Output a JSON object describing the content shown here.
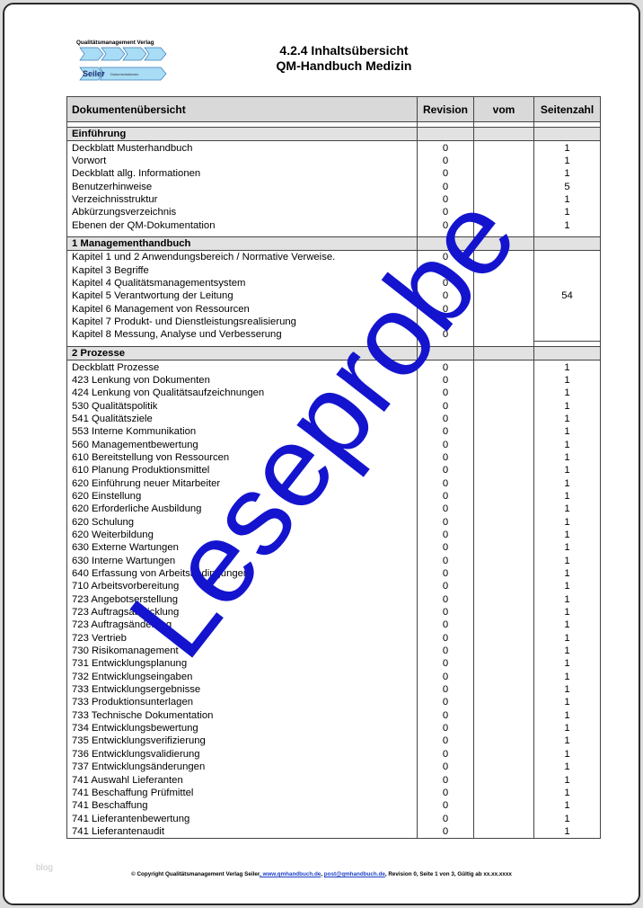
{
  "header": {
    "logo": {
      "publisher": "Qualitätsmanagement Verlag",
      "brand": "Seiler",
      "tagline": "Dokumentationen"
    },
    "title": "4.2.4 Inhaltsübersicht",
    "subtitle": "QM-Handbuch Medizin"
  },
  "table": {
    "columns": [
      "Dokumentenübersicht",
      "Revision",
      "vom",
      "Seitenzahl"
    ],
    "sections": [
      {
        "title": "Einführung",
        "rows": [
          {
            "name": "Deckblatt Musterhandbuch",
            "revision": 0,
            "pages": 1
          },
          {
            "name": "Vorwort",
            "revision": 0,
            "pages": 1
          },
          {
            "name": "Deckblatt allg. Informationen",
            "revision": 0,
            "pages": 1
          },
          {
            "name": "Benutzerhinweise",
            "revision": 0,
            "pages": 5
          },
          {
            "name": "Verzeichnisstruktur",
            "revision": 0,
            "pages": 1
          },
          {
            "name": "Abkürzungsverzeichnis",
            "revision": 0,
            "pages": 1
          },
          {
            "name": "Ebenen der QM-Dokumentation",
            "revision": 0,
            "pages": 1
          }
        ]
      },
      {
        "title": "1 Managementhandbuch",
        "pages": 54,
        "rows": [
          {
            "name": "Kapitel 1 und 2 Anwendungsbereich / Normative Verweise.",
            "revision": 0
          },
          {
            "name": "Kapitel 3 Begriffe",
            "revision": 0
          },
          {
            "name": "Kapitel 4 Qualitätsmanagementsystem",
            "revision": 0
          },
          {
            "name": "Kapitel 5 Verantwortung der Leitung",
            "revision": 0
          },
          {
            "name": "Kapitel 6 Management von Ressourcen",
            "revision": 0
          },
          {
            "name": "Kapitel 7 Produkt- und Dienstleistungsrealisierung",
            "revision": 0
          },
          {
            "name": "Kapitel 8 Messung, Analyse und Verbesserung",
            "revision": 0
          }
        ]
      },
      {
        "title": "2 Prozesse",
        "rows": [
          {
            "name": "Deckblatt Prozesse",
            "revision": 0,
            "pages": 1
          },
          {
            "name": "423 Lenkung von Dokumenten",
            "revision": 0,
            "pages": 1
          },
          {
            "name": "424 Lenkung von Qualitätsaufzeichnungen",
            "revision": 0,
            "pages": 1
          },
          {
            "name": "530 Qualitätspolitik",
            "revision": 0,
            "pages": 1
          },
          {
            "name": "541 Qualitätsziele",
            "revision": 0,
            "pages": 1
          },
          {
            "name": "553 Interne Kommunikation",
            "revision": 0,
            "pages": 1
          },
          {
            "name": "560 Managementbewertung",
            "revision": 0,
            "pages": 1
          },
          {
            "name": "610 Bereitstellung von Ressourcen",
            "revision": 0,
            "pages": 1
          },
          {
            "name": "610 Planung Produktionsmittel",
            "revision": 0,
            "pages": 1
          },
          {
            "name": "620 Einführung neuer Mitarbeiter",
            "revision": 0,
            "pages": 1
          },
          {
            "name": "620 Einstellung",
            "revision": 0,
            "pages": 1
          },
          {
            "name": "620 Erforderliche Ausbildung",
            "revision": 0,
            "pages": 1
          },
          {
            "name": "620 Schulung",
            "revision": 0,
            "pages": 1
          },
          {
            "name": "620 Weiterbildung",
            "revision": 0,
            "pages": 1
          },
          {
            "name": "630 Externe Wartungen",
            "revision": 0,
            "pages": 1
          },
          {
            "name": "630 Interne Wartungen",
            "revision": 0,
            "pages": 1
          },
          {
            "name": "640 Erfassung von Arbeitsbedingungen",
            "revision": 0,
            "pages": 1
          },
          {
            "name": "710 Arbeitsvorbereitung",
            "revision": 0,
            "pages": 1
          },
          {
            "name": "723 Angebotserstellung",
            "revision": 0,
            "pages": 1
          },
          {
            "name": "723 Auftragsabwicklung",
            "revision": 0,
            "pages": 1
          },
          {
            "name": "723 Auftragsänderung",
            "revision": 0,
            "pages": 1
          },
          {
            "name": "723 Vertrieb",
            "revision": 0,
            "pages": 1
          },
          {
            "name": "730 Risikomanagement",
            "revision": 0,
            "pages": 1
          },
          {
            "name": "731 Entwicklungsplanung",
            "revision": 0,
            "pages": 1
          },
          {
            "name": "732 Entwicklungseingaben",
            "revision": 0,
            "pages": 1
          },
          {
            "name": "733 Entwicklungsergebnisse",
            "revision": 0,
            "pages": 1
          },
          {
            "name": "733 Produktionsunterlagen",
            "revision": 0,
            "pages": 1
          },
          {
            "name": "733 Technische Dokumentation",
            "revision": 0,
            "pages": 1
          },
          {
            "name": "734 Entwicklungsbewertung",
            "revision": 0,
            "pages": 1
          },
          {
            "name": "735 Entwicklungsverifizierung",
            "revision": 0,
            "pages": 1
          },
          {
            "name": "736 Entwicklungsvalidierung",
            "revision": 0,
            "pages": 1
          },
          {
            "name": "737 Entwicklungsänderungen",
            "revision": 0,
            "pages": 1
          },
          {
            "name": "741 Auswahl Lieferanten",
            "revision": 0,
            "pages": 1
          },
          {
            "name": "741 Beschaffung Prüfmittel",
            "revision": 0,
            "pages": 1
          },
          {
            "name": "741 Beschaffung",
            "revision": 0,
            "pages": 1
          },
          {
            "name": "741 Lieferantenbewertung",
            "revision": 0,
            "pages": 1
          },
          {
            "name": "741 Lieferantenaudit",
            "revision": 0,
            "pages": 1
          }
        ]
      }
    ]
  },
  "watermark": "Leseprobe",
  "footer": {
    "parts": [
      "© Copyright Qualitätsmanagement Verlag Seiler",
      ", www.qmhandbuch.de",
      ", ",
      "post@qmhandbuch.de",
      ", Revision 0, Seite 1 von 3, Gültig ab xx.xx.xxxx"
    ]
  },
  "corner_label": "blog"
}
